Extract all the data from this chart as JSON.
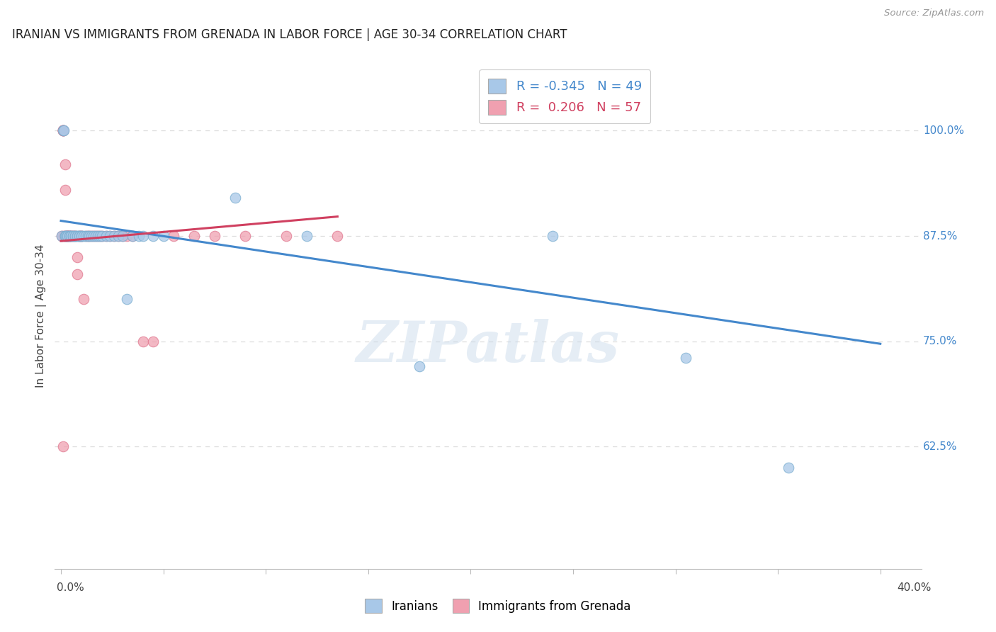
{
  "title": "IRANIAN VS IMMIGRANTS FROM GRENADA IN LABOR FORCE | AGE 30-34 CORRELATION CHART",
  "source": "Source: ZipAtlas.com",
  "ylabel": "In Labor Force | Age 30-34",
  "y_axis_ticks": [
    0.625,
    0.75,
    0.875,
    1.0
  ],
  "y_axis_tick_labels": [
    "62.5%",
    "75.0%",
    "87.5%",
    "100.0%"
  ],
  "xlim": [
    -0.003,
    0.42
  ],
  "ylim": [
    0.48,
    1.08
  ],
  "legend_R1": "-0.345",
  "legend_N1": "49",
  "legend_R2": "0.206",
  "legend_N2": "57",
  "legend_label1": "Iranians",
  "legend_label2": "Immigrants from Grenada",
  "blue_color": "#a8c8e8",
  "blue_edge_color": "#7aaed0",
  "blue_line_color": "#4488cc",
  "pink_color": "#f0a0b0",
  "pink_edge_color": "#e07890",
  "pink_line_color": "#d04060",
  "watermark": "ZIPatlas",
  "blue_scatter_x": [
    0.0005,
    0.001,
    0.0015,
    0.002,
    0.002,
    0.0025,
    0.003,
    0.003,
    0.004,
    0.004,
    0.005,
    0.005,
    0.006,
    0.006,
    0.007,
    0.007,
    0.008,
    0.008,
    0.009,
    0.009,
    0.01,
    0.01,
    0.011,
    0.012,
    0.013,
    0.014,
    0.015,
    0.016,
    0.017,
    0.018,
    0.019,
    0.02,
    0.022,
    0.024,
    0.026,
    0.028,
    0.03,
    0.032,
    0.035,
    0.038,
    0.04,
    0.045,
    0.05,
    0.085,
    0.12,
    0.175,
    0.24,
    0.305,
    0.355
  ],
  "blue_scatter_y": [
    0.875,
    1.0,
    1.0,
    0.875,
    0.875,
    0.875,
    0.875,
    0.875,
    0.875,
    0.875,
    0.875,
    0.875,
    0.875,
    0.875,
    0.875,
    0.875,
    0.875,
    0.875,
    0.875,
    0.875,
    0.875,
    0.875,
    0.875,
    0.875,
    0.875,
    0.875,
    0.875,
    0.875,
    0.875,
    0.875,
    0.875,
    0.875,
    0.875,
    0.875,
    0.875,
    0.875,
    0.875,
    0.8,
    0.875,
    0.875,
    0.875,
    0.875,
    0.875,
    0.92,
    0.875,
    0.72,
    0.875,
    0.73,
    0.6
  ],
  "pink_scatter_x": [
    0.0005,
    0.001,
    0.001,
    0.001,
    0.001,
    0.001,
    0.0015,
    0.002,
    0.002,
    0.002,
    0.002,
    0.003,
    0.003,
    0.003,
    0.003,
    0.003,
    0.004,
    0.004,
    0.004,
    0.005,
    0.005,
    0.006,
    0.006,
    0.007,
    0.007,
    0.008,
    0.008,
    0.009,
    0.009,
    0.01,
    0.01,
    0.011,
    0.012,
    0.013,
    0.014,
    0.015,
    0.016,
    0.017,
    0.018,
    0.019,
    0.02,
    0.022,
    0.024,
    0.026,
    0.028,
    0.03,
    0.032,
    0.035,
    0.04,
    0.045,
    0.055,
    0.065,
    0.075,
    0.09,
    0.11,
    0.135,
    0.001
  ],
  "pink_scatter_y": [
    0.875,
    1.0,
    1.0,
    1.0,
    1.0,
    1.0,
    0.875,
    0.96,
    0.93,
    0.875,
    0.875,
    0.875,
    0.875,
    0.875,
    0.875,
    0.875,
    0.875,
    0.875,
    0.875,
    0.875,
    0.875,
    0.875,
    0.875,
    0.875,
    0.875,
    0.85,
    0.83,
    0.875,
    0.875,
    0.875,
    0.875,
    0.8,
    0.875,
    0.875,
    0.875,
    0.875,
    0.875,
    0.875,
    0.875,
    0.875,
    0.875,
    0.875,
    0.875,
    0.875,
    0.875,
    0.875,
    0.875,
    0.875,
    0.75,
    0.75,
    0.875,
    0.875,
    0.875,
    0.875,
    0.875,
    0.875,
    0.625
  ],
  "blue_trend_x": [
    0.0,
    0.4
  ],
  "blue_trend_y": [
    0.893,
    0.747
  ],
  "pink_trend_x": [
    0.0,
    0.135
  ],
  "pink_trend_y": [
    0.869,
    0.898
  ],
  "grid_color": "#dddddd",
  "background_color": "#ffffff",
  "title_fontsize": 12,
  "axis_label_fontsize": 11
}
